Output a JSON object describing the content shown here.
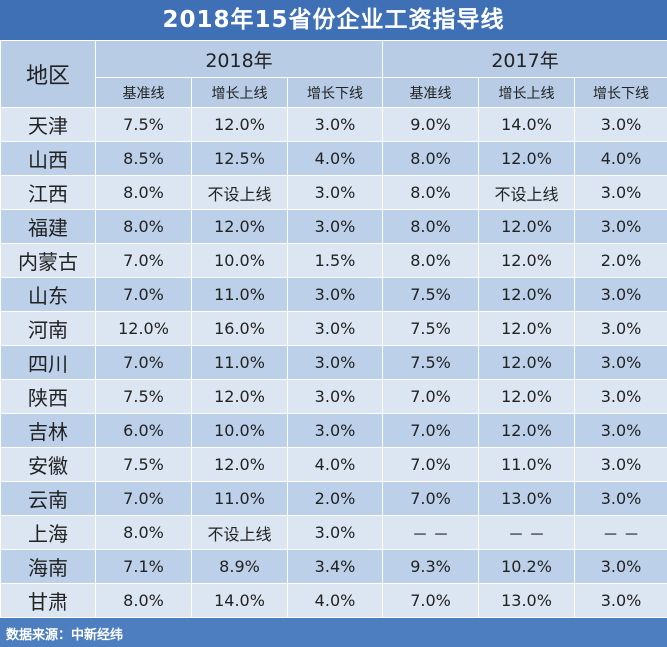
{
  "title": "2018年15省份企业工资指导线",
  "header": {
    "region_label": "地区",
    "year_2018": "2018年",
    "year_2017": "2017年",
    "cols": [
      "基准线",
      "增长上线",
      "增长下线",
      "基准线",
      "增长上线",
      "增长下线"
    ]
  },
  "rows": [
    {
      "region": "天津",
      "v": [
        "7.5%",
        "12.0%",
        "3.0%",
        "9.0%",
        "14.0%",
        "3.0%"
      ]
    },
    {
      "region": "山西",
      "v": [
        "8.5%",
        "12.5%",
        "4.0%",
        "8.0%",
        "12.0%",
        "4.0%"
      ]
    },
    {
      "region": "江西",
      "v": [
        "8.0%",
        "不设上线",
        "3.0%",
        "8.0%",
        "不设上线",
        "3.0%"
      ]
    },
    {
      "region": "福建",
      "v": [
        "8.0%",
        "12.0%",
        "3.0%",
        "8.0%",
        "12.0%",
        "3.0%"
      ]
    },
    {
      "region": "内蒙古",
      "v": [
        "7.0%",
        "10.0%",
        "1.5%",
        "8.0%",
        "12.0%",
        "2.0%"
      ]
    },
    {
      "region": "山东",
      "v": [
        "7.0%",
        "11.0%",
        "3.0%",
        "7.5%",
        "12.0%",
        "3.0%"
      ]
    },
    {
      "region": "河南",
      "v": [
        "12.0%",
        "16.0%",
        "3.0%",
        "7.5%",
        "12.0%",
        "3.0%"
      ]
    },
    {
      "region": "四川",
      "v": [
        "7.0%",
        "11.0%",
        "3.0%",
        "7.5%",
        "12.0%",
        "3.0%"
      ]
    },
    {
      "region": "陕西",
      "v": [
        "7.5%",
        "12.0%",
        "3.0%",
        "7.0%",
        "12.0%",
        "3.0%"
      ]
    },
    {
      "region": "吉林",
      "v": [
        "6.0%",
        "10.0%",
        "3.0%",
        "7.0%",
        "12.0%",
        "3.0%"
      ]
    },
    {
      "region": "安徽",
      "v": [
        "7.5%",
        "12.0%",
        "4.0%",
        "7.0%",
        "11.0%",
        "3.0%"
      ]
    },
    {
      "region": "云南",
      "v": [
        "7.0%",
        "11.0%",
        "2.0%",
        "7.0%",
        "13.0%",
        "3.0%"
      ]
    },
    {
      "region": "上海",
      "v": [
        "8.0%",
        "不设上线",
        "3.0%",
        "－ －",
        "－ －",
        "－ －"
      ]
    },
    {
      "region": "海南",
      "v": [
        "7.1%",
        "8.9%",
        "3.4%",
        "9.3%",
        "10.2%",
        "3.0%"
      ]
    },
    {
      "region": "甘肃",
      "v": [
        "8.0%",
        "14.0%",
        "4.0%",
        "7.0%",
        "13.0%",
        "3.0%"
      ]
    }
  ],
  "source": "数据来源：中新经纬",
  "colors": {
    "frame": "#4d7fc0",
    "title_bg": "#3f70b6",
    "header_bg": "#b8cce6",
    "row_light": "#dce6f2",
    "row_dark": "#bcd0e9"
  }
}
